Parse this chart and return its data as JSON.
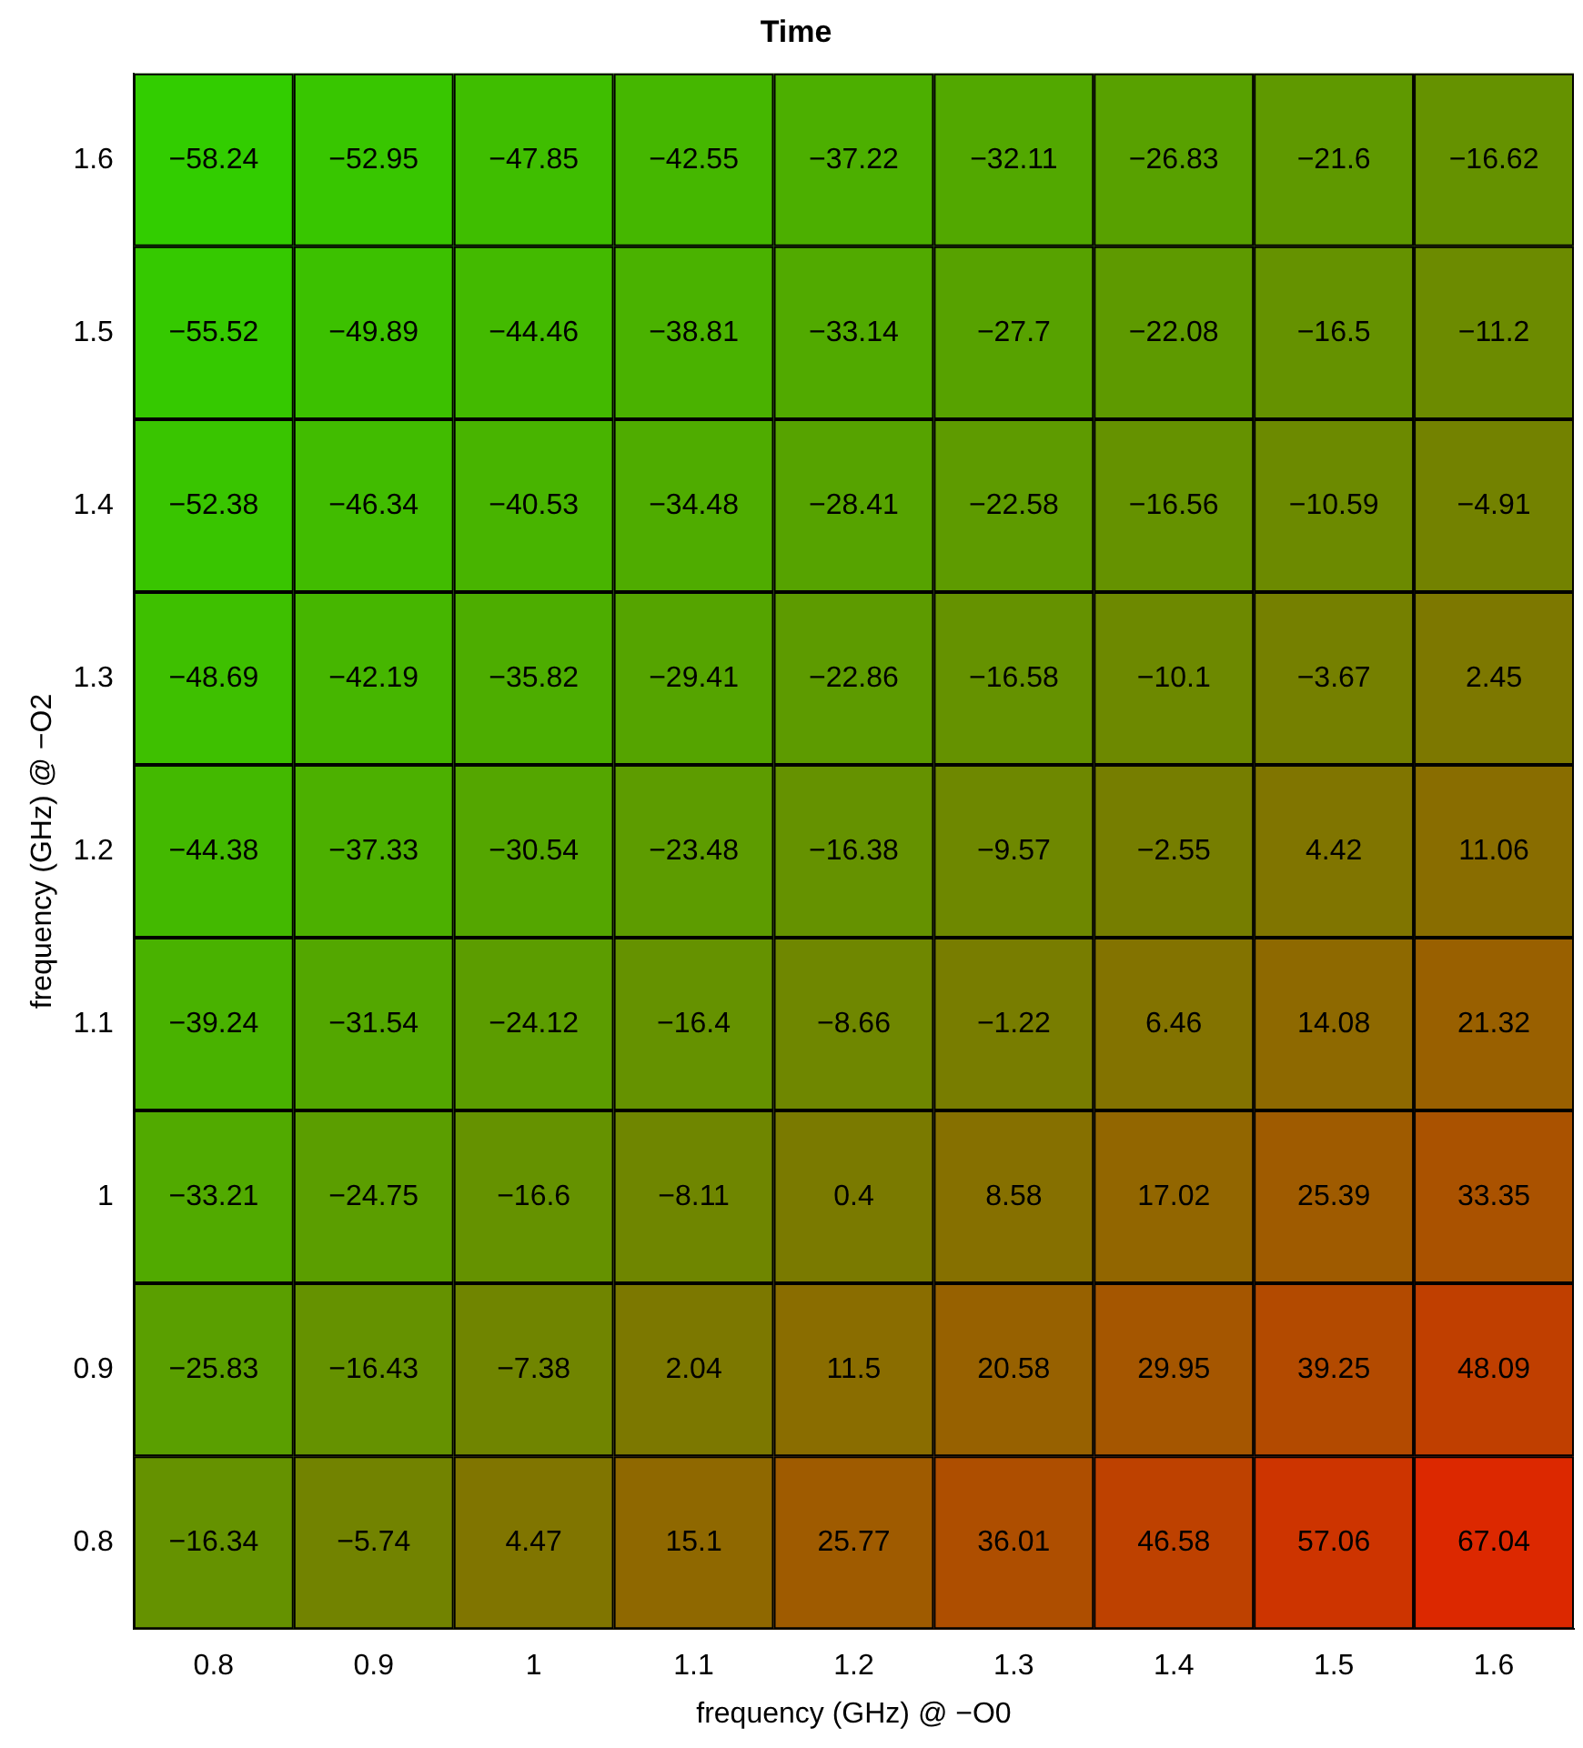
{
  "chart_data": {
    "type": "heatmap",
    "title": "Time",
    "xlabel": "frequency (GHz) @ −O0",
    "ylabel": "frequency (GHz) @ −O2",
    "categories": [
      "0.8",
      "0.9",
      "1",
      "1.1",
      "1.2",
      "1.3",
      "1.4",
      "1.5",
      "1.6"
    ],
    "y_categories": [
      "1.6",
      "1.5",
      "1.4",
      "1.3",
      "1.2",
      "1.1",
      "1",
      "0.9",
      "0.8"
    ],
    "cells": [
      [
        -58.24,
        -52.95,
        -47.85,
        -42.55,
        -37.22,
        -32.11,
        -26.83,
        -21.6,
        -16.62
      ],
      [
        -55.52,
        -49.89,
        -44.46,
        -38.81,
        -33.14,
        -27.7,
        -22.08,
        -16.5,
        -11.2
      ],
      [
        -52.38,
        -46.34,
        -40.53,
        -34.48,
        -28.41,
        -22.58,
        -16.56,
        -10.59,
        -4.91
      ],
      [
        -48.69,
        -42.19,
        -35.82,
        -29.41,
        -22.86,
        -16.58,
        -10.1,
        -3.67,
        2.45
      ],
      [
        -44.38,
        -37.33,
        -30.54,
        -23.48,
        -16.38,
        -9.57,
        -2.55,
        4.42,
        11.06
      ],
      [
        -39.24,
        -31.54,
        -24.12,
        -16.4,
        -8.66,
        -1.22,
        6.46,
        14.08,
        21.32
      ],
      [
        -33.21,
        -24.75,
        -16.6,
        -8.11,
        0.4,
        8.58,
        17.02,
        25.39,
        33.35
      ],
      [
        -25.83,
        -16.43,
        -7.38,
        2.04,
        11.5,
        20.58,
        29.95,
        39.25,
        48.09
      ],
      [
        -16.34,
        -5.74,
        4.47,
        15.1,
        25.77,
        36.01,
        46.58,
        57.06,
        67.04
      ]
    ],
    "data_labels": true,
    "grid": false,
    "legend": false
  }
}
